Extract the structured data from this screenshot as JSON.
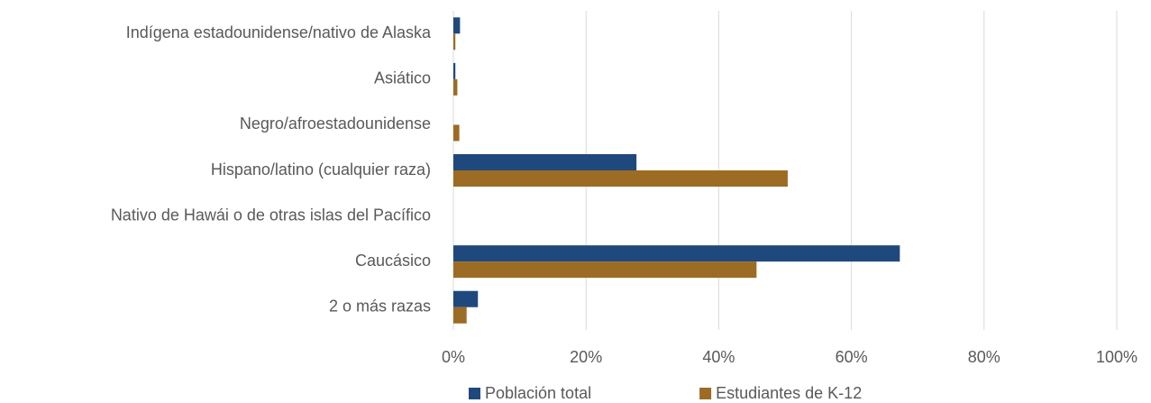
{
  "chart_data": {
    "type": "barh",
    "categories": [
      "Indígena estadounidense/nativo de Alaska",
      "Asiático",
      "Negro/afroestadounidense",
      "Hispano/latino (cualquier raza)",
      "Nativo de Hawái o de otras islas del Pacífico",
      "Caucásico",
      "2 o más razas"
    ],
    "series": [
      {
        "name": "Población total",
        "color": "#1f497d",
        "values": [
          1.0,
          0.3,
          0,
          27.6,
          0,
          67.3,
          3.7
        ]
      },
      {
        "name": "Estudiantes de K-12",
        "color": "#9c6b24",
        "values": [
          0.3,
          0.6,
          0.9,
          50.4,
          0,
          45.7,
          2.0
        ]
      }
    ],
    "xlim": [
      0,
      100
    ],
    "xticks": [
      {
        "value": 0,
        "label": "0%"
      },
      {
        "value": 20,
        "label": "20%"
      },
      {
        "value": 40,
        "label": "40%"
      },
      {
        "value": 60,
        "label": "60%"
      },
      {
        "value": 80,
        "label": "80%"
      },
      {
        "value": 100,
        "label": "100%"
      }
    ],
    "grid": true,
    "legend": "bottom"
  }
}
